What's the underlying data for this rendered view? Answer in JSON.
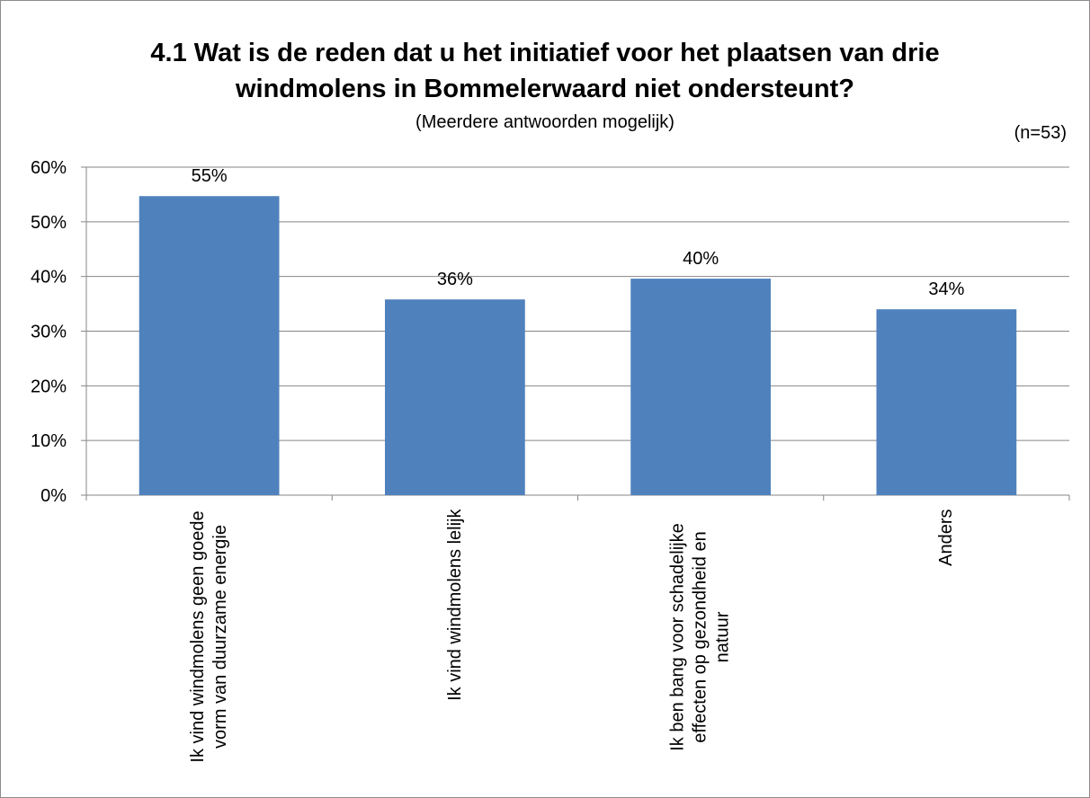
{
  "chart_data": {
    "type": "bar",
    "title": "4.1 Wat is de reden dat u het initiatief voor het plaatsen van drie windmolens in Bommelerwaard niet ondersteunt?",
    "subtitle": "(Meerdere antwoorden mogelijk)",
    "annotation": "(n=53)",
    "categories": [
      "Ik vind windmolens geen goede vorm van duurzame energie",
      "Ik vind windmolens lelijk",
      "Ik ben bang voor schadelijke effecten op gezondheid en natuur",
      "Anders"
    ],
    "values": [
      54.7,
      35.8,
      39.6,
      34.0
    ],
    "value_labels": [
      "55%",
      "36%",
      "40%",
      "34%"
    ],
    "color": "#4f81bd",
    "ylim": [
      0,
      60
    ],
    "yticks": [
      {
        "value": 0,
        "label": "0%"
      },
      {
        "value": 10,
        "label": "10%"
      },
      {
        "value": 20,
        "label": "20%"
      },
      {
        "value": 30,
        "label": "30%"
      },
      {
        "value": 40,
        "label": "40%"
      },
      {
        "value": 50,
        "label": "50%"
      },
      {
        "value": 60,
        "label": "60%"
      }
    ],
    "grid": true
  }
}
